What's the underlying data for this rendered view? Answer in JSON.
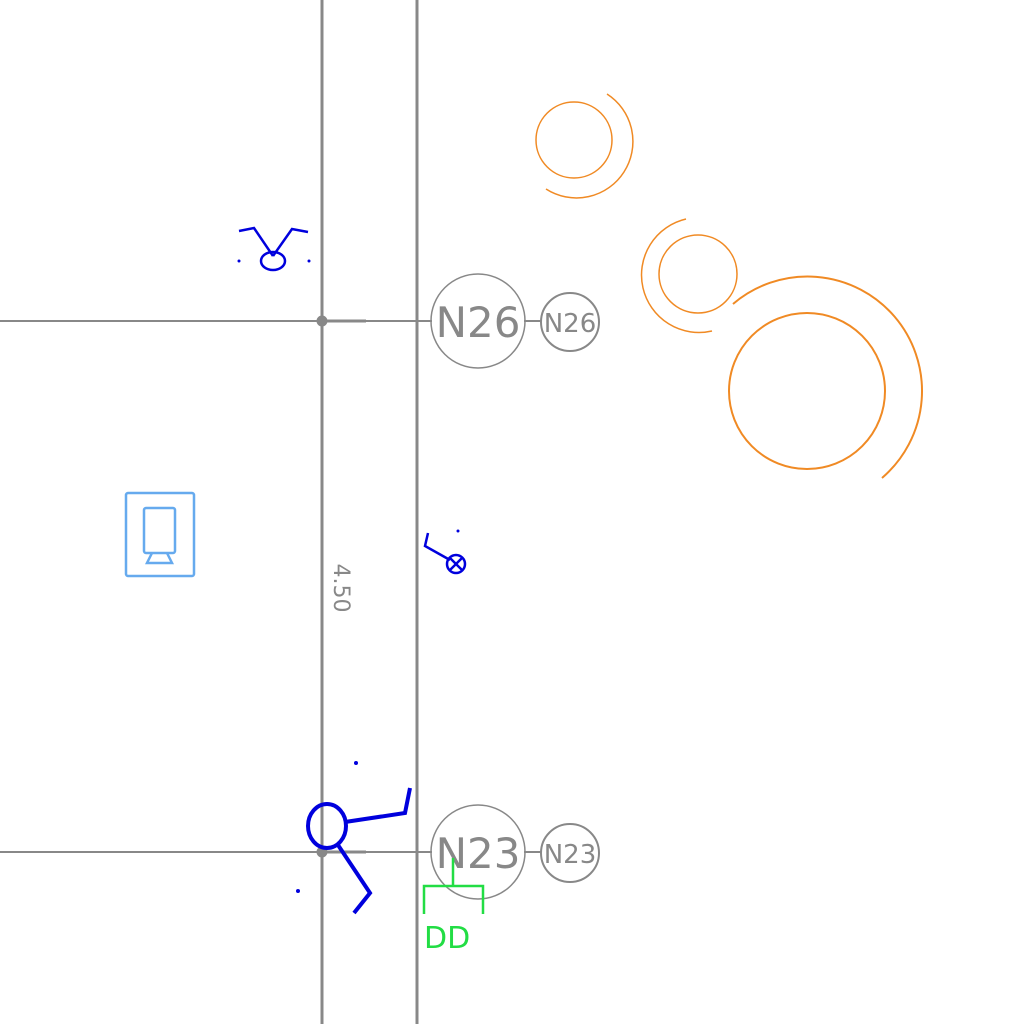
{
  "colors": {
    "background": "#ffffff",
    "grid": "#888888",
    "fixture": "#0000dd",
    "fixture_light": "#66aaee",
    "tree": "#f08a24",
    "annotation": "#22dd44"
  },
  "grid_markers": [
    {
      "label": "N26"
    },
    {
      "label": "N23"
    }
  ],
  "dimension": {
    "label": "4.50"
  },
  "annotation": {
    "label": "DD"
  },
  "icons": [
    "ceiling-fixture-icon",
    "display-panel-icon",
    "lamp-fixture-icon",
    "chair-icon",
    "tree-symbol-icon"
  ]
}
